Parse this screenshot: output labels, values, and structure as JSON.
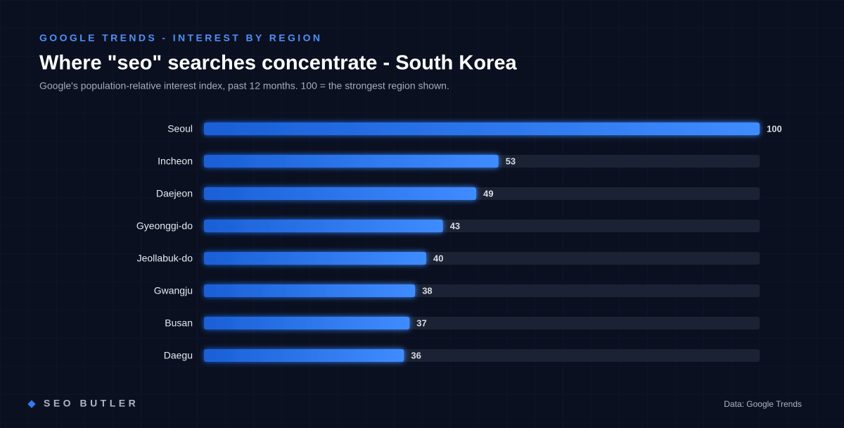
{
  "chart_data": {
    "type": "bar",
    "orientation": "horizontal",
    "kicker": "GOOGLE TRENDS - INTEREST BY REGION",
    "title": "Where \"seo\" searches concentrate - South Korea",
    "subtitle": "Google's population-relative interest index, past 12 months. 100 = the strongest region shown.",
    "categories": [
      "Seoul",
      "Incheon",
      "Daejeon",
      "Gyeonggi-do",
      "Jeollabuk-do",
      "Gwangju",
      "Busan",
      "Daegu"
    ],
    "values": [
      100,
      53,
      49,
      43,
      40,
      38,
      37,
      36
    ],
    "color": "#2f7bf5",
    "xlim": [
      0,
      100
    ],
    "brand": "SEO BUTLER",
    "source": "Data: Google Trends"
  }
}
